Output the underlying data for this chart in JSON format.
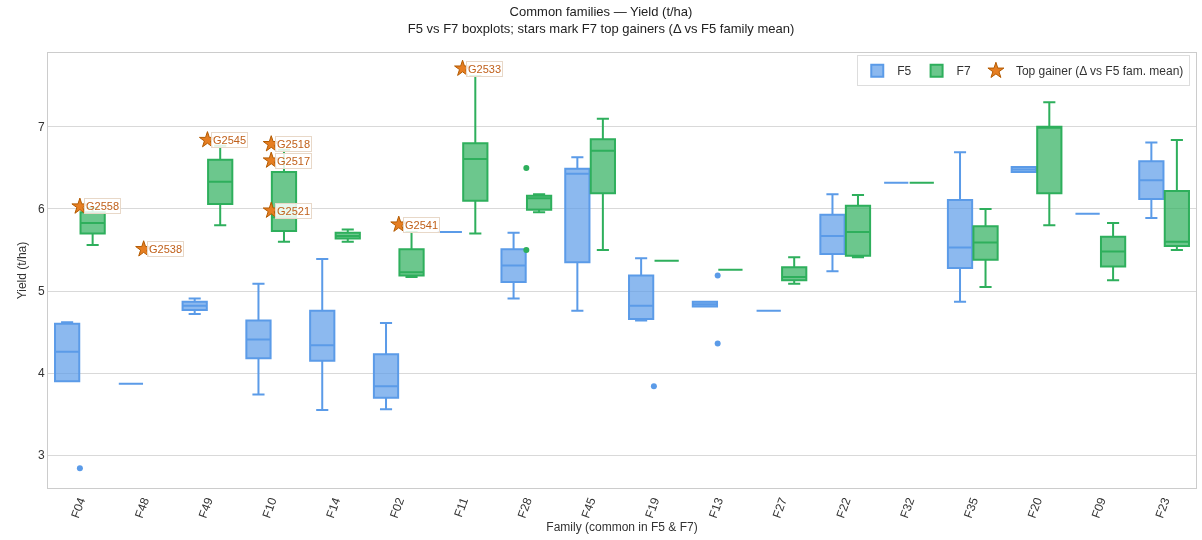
{
  "chart_data": {
    "type": "box",
    "title": "Common families — Yield (t/ha)",
    "subtitle": "F5 vs F7 boxplots; stars mark F7 top gainers (Δ vs F5 family mean)",
    "xlabel": "Family (common in F5 & F7)",
    "ylabel": "Yield (t/ha)",
    "categories": [
      "F04",
      "F48",
      "F49",
      "F10",
      "F14",
      "F02",
      "F11",
      "F28",
      "F45",
      "F19",
      "F13",
      "F27",
      "F22",
      "F32",
      "F35",
      "F20",
      "F09",
      "F23"
    ],
    "series": [
      {
        "name": "F5",
        "color": "#5b9be8",
        "boxes": [
          {
            "low": 3.9,
            "q1": 3.9,
            "median": 4.26,
            "q3": 4.6,
            "high": 4.62
          },
          {
            "low": 3.87,
            "q1": 3.87,
            "median": 3.87,
            "q3": 3.87,
            "high": 3.87
          },
          {
            "low": 4.72,
            "q1": 4.77,
            "median": 4.82,
            "q3": 4.87,
            "high": 4.91
          },
          {
            "low": 3.74,
            "q1": 4.18,
            "median": 4.41,
            "q3": 4.64,
            "high": 5.09
          },
          {
            "low": 3.55,
            "q1": 4.15,
            "median": 4.34,
            "q3": 4.76,
            "high": 5.39
          },
          {
            "low": 3.56,
            "q1": 3.7,
            "median": 3.84,
            "q3": 4.23,
            "high": 4.61
          },
          {
            "low": 5.72,
            "q1": 5.72,
            "median": 5.72,
            "q3": 5.72,
            "high": 5.72
          },
          {
            "low": 4.91,
            "q1": 5.11,
            "median": 5.31,
            "q3": 5.51,
            "high": 5.71
          },
          {
            "low": 4.76,
            "q1": 5.35,
            "median": 6.43,
            "q3": 6.49,
            "high": 6.63
          },
          {
            "low": 4.64,
            "q1": 4.66,
            "median": 4.82,
            "q3": 5.19,
            "high": 5.4
          },
          {
            "low": 4.81,
            "q1": 4.81,
            "median": 4.84,
            "q3": 4.87,
            "high": 4.87
          },
          {
            "low": 4.76,
            "q1": 4.76,
            "median": 4.76,
            "q3": 4.76,
            "high": 4.76
          },
          {
            "low": 5.24,
            "q1": 5.45,
            "median": 5.67,
            "q3": 5.93,
            "high": 6.18
          },
          {
            "low": 6.32,
            "q1": 6.32,
            "median": 6.32,
            "q3": 6.32,
            "high": 6.32
          },
          {
            "low": 4.87,
            "q1": 5.28,
            "median": 5.53,
            "q3": 6.11,
            "high": 6.69
          },
          {
            "low": 6.45,
            "q1": 6.45,
            "median": 6.48,
            "q3": 6.51,
            "high": 6.51
          },
          {
            "low": 5.94,
            "q1": 5.94,
            "median": 5.94,
            "q3": 5.94,
            "high": 5.94
          },
          {
            "low": 5.89,
            "q1": 6.12,
            "median": 6.35,
            "q3": 6.58,
            "high": 6.81
          }
        ]
      },
      {
        "name": "F7",
        "color": "#2eaf5c",
        "boxes": [
          {
            "low": 5.56,
            "q1": 5.7,
            "median": 5.83,
            "q3": 5.96,
            "high": 6.01
          },
          null,
          {
            "low": 5.8,
            "q1": 6.06,
            "median": 6.33,
            "q3": 6.6,
            "high": 6.77
          },
          {
            "low": 5.6,
            "q1": 5.73,
            "median": 5.9,
            "q3": 6.45,
            "high": 6.72
          },
          {
            "low": 5.6,
            "q1": 5.64,
            "median": 5.67,
            "q3": 5.71,
            "high": 5.75
          },
          {
            "low": 5.17,
            "q1": 5.19,
            "median": 5.23,
            "q3": 5.51,
            "high": 5.72
          },
          {
            "low": 5.7,
            "q1": 6.1,
            "median": 6.61,
            "q3": 6.8,
            "high": 7.62
          },
          {
            "low": 5.96,
            "q1": 5.99,
            "median": 6.13,
            "q3": 6.16,
            "high": 6.18
          },
          {
            "low": 5.5,
            "q1": 6.19,
            "median": 6.71,
            "q3": 6.85,
            "high": 7.1
          },
          {
            "low": 5.37,
            "q1": 5.37,
            "median": 5.37,
            "q3": 5.37,
            "high": 5.37
          },
          {
            "low": 5.26,
            "q1": 5.26,
            "median": 5.26,
            "q3": 5.26,
            "high": 5.26
          },
          {
            "low": 5.09,
            "q1": 5.13,
            "median": 5.17,
            "q3": 5.29,
            "high": 5.41
          },
          {
            "low": 5.41,
            "q1": 5.43,
            "median": 5.72,
            "q3": 6.04,
            "high": 6.17
          },
          {
            "low": 6.32,
            "q1": 6.32,
            "median": 6.32,
            "q3": 6.32,
            "high": 6.32
          },
          {
            "low": 5.05,
            "q1": 5.38,
            "median": 5.59,
            "q3": 5.79,
            "high": 6.0
          },
          {
            "low": 5.8,
            "q1": 6.19,
            "median": 7.0,
            "q3": 7.0,
            "high": 7.3
          },
          {
            "low": 5.13,
            "q1": 5.3,
            "median": 5.48,
            "q3": 5.66,
            "high": 5.83
          },
          {
            "low": 5.5,
            "q1": 5.55,
            "median": 5.6,
            "q3": 6.22,
            "high": 6.84
          }
        ]
      },
      {
        "type": "scatter",
        "marker": "circle",
        "color": "#5b9be8",
        "x": [
          "F04",
          "F19",
          "F13",
          "F13"
        ],
        "values": [
          2.84,
          3.84,
          5.19,
          4.36
        ]
      },
      {
        "type": "scatter",
        "marker": "circle",
        "color": "#2eaf5c",
        "x": [
          "F28",
          "F28"
        ],
        "values": [
          6.5,
          5.5
        ]
      },
      {
        "name": "Top gainer (Δ vs F5 fam. mean)",
        "type": "scatter",
        "marker": "star",
        "color": "#e67e22",
        "x": [
          "F04",
          "F48",
          "F49",
          "F10",
          "F10",
          "F10",
          "F02",
          "F11"
        ],
        "values": [
          6.03,
          5.51,
          6.84,
          6.79,
          6.59,
          5.98,
          5.81,
          7.71
        ]
      }
    ],
    "annotations": [
      {
        "text": "G2558",
        "x": "F04",
        "y": 6.03
      },
      {
        "text": "G2538",
        "x": "F48",
        "y": 5.51
      },
      {
        "text": "G2545",
        "x": "F49",
        "y": 6.84
      },
      {
        "text": "G2518",
        "x": "F10",
        "y": 6.79
      },
      {
        "text": "G2517",
        "x": "F10",
        "y": 6.59
      },
      {
        "text": "G2521",
        "x": "F10",
        "y": 5.98
      },
      {
        "text": "G2541",
        "x": "F02",
        "y": 5.81
      },
      {
        "text": "G2533",
        "x": "F11",
        "y": 7.71
      }
    ],
    "ylim": [
      2.6,
      7.9
    ],
    "yticks": [
      3,
      4,
      5,
      6,
      7
    ],
    "grid": "y",
    "legend": "top right"
  }
}
